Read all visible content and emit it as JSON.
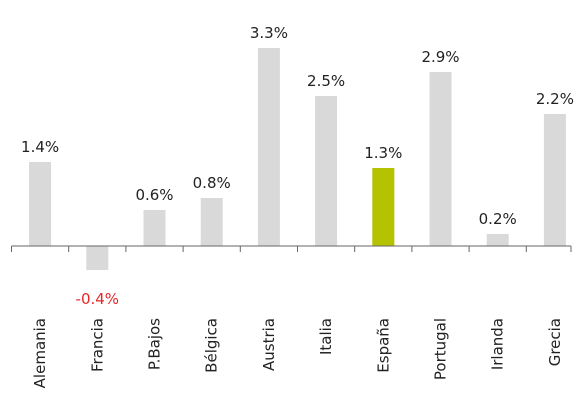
{
  "chart_data": {
    "type": "bar",
    "categories": [
      "Alemania",
      "Francia",
      "P.Bajos",
      "Bélgica",
      "Austria",
      "Italia",
      "España",
      "Portugal",
      "Irlanda",
      "Grecia"
    ],
    "values": [
      1.4,
      -0.4,
      0.6,
      0.8,
      3.3,
      2.5,
      1.3,
      2.9,
      0.2,
      2.2
    ],
    "value_labels": [
      "1.4%",
      "-0.4%",
      "0.6%",
      "0.8%",
      "3.3%",
      "2.5%",
      "1.3%",
      "2.9%",
      "0.2%",
      "2.2%"
    ],
    "colors": [
      "#d9d9d9",
      "#d9d9d9",
      "#d9d9d9",
      "#d9d9d9",
      "#d9d9d9",
      "#d9d9d9",
      "#b5c200",
      "#d9d9d9",
      "#d9d9d9",
      "#d9d9d9"
    ],
    "negative_label_color": "#e8262a",
    "ylim": [
      -0.6,
      3.6
    ]
  }
}
